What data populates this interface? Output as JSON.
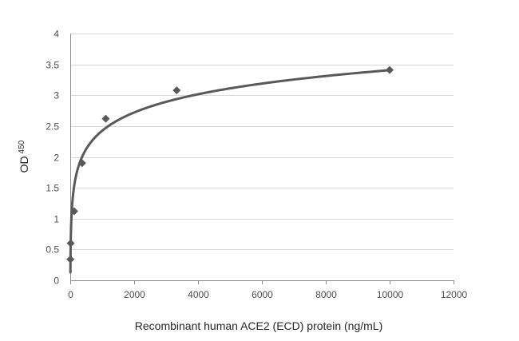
{
  "chart_data": {
    "type": "scatter",
    "title": "",
    "xlabel": "Recombinant human ACE2 (ECD) protein (ng/mL)",
    "ylabel": "OD",
    "ylabel_subscript": "450",
    "xlim": [
      0,
      12000
    ],
    "ylim": [
      0,
      4
    ],
    "x_ticks": [
      0,
      2000,
      4000,
      6000,
      8000,
      10000,
      12000
    ],
    "y_ticks": [
      0,
      0.5,
      1,
      1.5,
      2,
      2.5,
      3,
      3.5,
      4
    ],
    "x_tick_labels": [
      "0",
      "2000",
      "4000",
      "6000",
      "8000",
      "10000",
      "12000"
    ],
    "y_tick_labels": [
      "0",
      "0.5",
      "1",
      "1.5",
      "2",
      "2.5",
      "3",
      "3.5",
      "4"
    ],
    "grid": true,
    "legend": "none",
    "marker": "diamond",
    "marker_color": "#595959",
    "line_color": "#595959",
    "trendline": "logarithmic",
    "series": [
      {
        "values": [
          {
            "x": 4.6,
            "y": 0.34
          },
          {
            "x": 13.7,
            "y": 0.6
          },
          {
            "x": 123,
            "y": 1.12
          },
          {
            "x": 370,
            "y": 1.9
          },
          {
            "x": 1111,
            "y": 2.62
          },
          {
            "x": 3333,
            "y": 3.08
          },
          {
            "x": 10000,
            "y": 3.41
          }
        ]
      }
    ]
  }
}
